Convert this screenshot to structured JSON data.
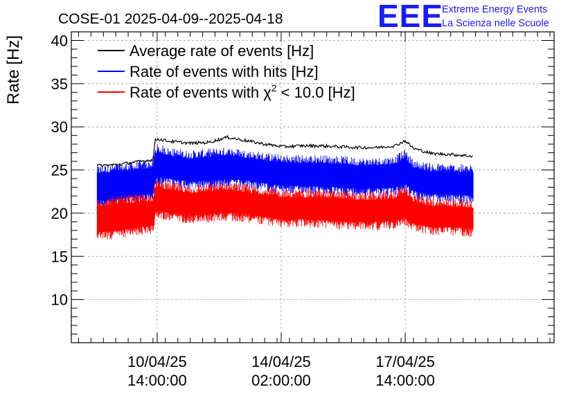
{
  "logo": {
    "mark": "EEE",
    "line1": "Extreme Energy Events",
    "line2": "La Scienza nelle Scuole",
    "color": "#1a1aff"
  },
  "chart_data": {
    "type": "line",
    "title": "COSE-01 2025-04-09--2025-04-18",
    "ylabel": "Rate [Hz]",
    "xlabel": "",
    "ylim": [
      5,
      41
    ],
    "yticks": [
      10,
      15,
      20,
      25,
      30,
      35,
      40
    ],
    "grid": true,
    "legend_position": "top-left",
    "x_unit": "hours since 2025-04-09 00:00",
    "xlim": [
      -3.5,
      230
    ],
    "xtick_labels": [
      {
        "x": 38,
        "line1": "10/04/25",
        "line2": "14:00:00"
      },
      {
        "x": 98,
        "line1": "14/04/25",
        "line2": "02:00:00"
      },
      {
        "x": 158,
        "line1": "17/04/25",
        "line2": "14:00:00"
      }
    ],
    "series": [
      {
        "name": "Average rate of events [Hz]",
        "color": "#000000",
        "style": "line",
        "x": [
          9,
          18,
          27,
          36,
          37,
          38,
          45,
          54,
          63,
          72,
          81,
          90,
          99,
          108,
          117,
          126,
          135,
          144,
          153,
          158,
          162,
          171,
          180,
          191
        ],
        "y": [
          25.5,
          25.6,
          25.9,
          26.2,
          28.4,
          28.6,
          28.3,
          28.1,
          28.2,
          28.8,
          28.4,
          28.0,
          27.7,
          27.8,
          27.8,
          27.7,
          27.6,
          27.6,
          27.8,
          28.4,
          27.5,
          26.9,
          26.8,
          26.6
        ]
      },
      {
        "name": "Rate of events with hits [Hz]",
        "color": "#0000ff",
        "style": "band",
        "x": [
          9,
          18,
          27,
          36,
          37,
          38,
          45,
          54,
          63,
          72,
          81,
          90,
          99,
          108,
          117,
          126,
          135,
          144,
          153,
          158,
          162,
          171,
          180,
          191
        ],
        "low": [
          21.5,
          21.7,
          22.0,
          22.3,
          23.8,
          24.2,
          24.0,
          23.7,
          23.8,
          24.0,
          23.8,
          23.5,
          23.2,
          23.2,
          23.1,
          23.0,
          22.9,
          22.9,
          23.0,
          23.4,
          22.6,
          22.2,
          22.2,
          22.0
        ],
        "high": [
          24.6,
          24.8,
          25.0,
          25.2,
          26.8,
          27.0,
          26.6,
          26.3,
          26.5,
          26.7,
          26.4,
          26.1,
          25.8,
          25.8,
          25.8,
          25.7,
          25.5,
          25.5,
          25.7,
          26.4,
          25.2,
          24.8,
          24.8,
          24.6
        ]
      },
      {
        "name": "Rate of events with χ² < 10.0 [Hz]",
        "color": "#ff0000",
        "style": "band",
        "x": [
          9,
          18,
          27,
          36,
          37,
          38,
          45,
          54,
          63,
          72,
          81,
          90,
          99,
          108,
          117,
          126,
          135,
          144,
          153,
          158,
          162,
          171,
          180,
          191
        ],
        "low": [
          17.8,
          18.0,
          18.3,
          18.6,
          20.0,
          20.4,
          20.0,
          19.8,
          19.9,
          20.1,
          19.9,
          19.6,
          19.3,
          19.3,
          19.2,
          19.1,
          19.0,
          19.0,
          19.1,
          19.6,
          18.8,
          18.4,
          18.4,
          18.2
        ],
        "high": [
          20.8,
          21.0,
          21.2,
          21.4,
          22.8,
          23.0,
          22.6,
          22.3,
          22.5,
          22.7,
          22.4,
          22.1,
          21.8,
          21.8,
          21.8,
          21.7,
          21.5,
          21.5,
          21.7,
          22.4,
          21.2,
          20.8,
          20.8,
          20.6
        ]
      }
    ],
    "legend_entries": [
      {
        "prefix": "Average rate of events [Hz]",
        "sup": "",
        "suffix": ""
      },
      {
        "prefix": "Rate of events with hits [Hz]",
        "sup": "",
        "suffix": ""
      },
      {
        "prefix": "Rate of events with χ",
        "sup": "2",
        "suffix": " < 10.0 [Hz]"
      }
    ]
  }
}
